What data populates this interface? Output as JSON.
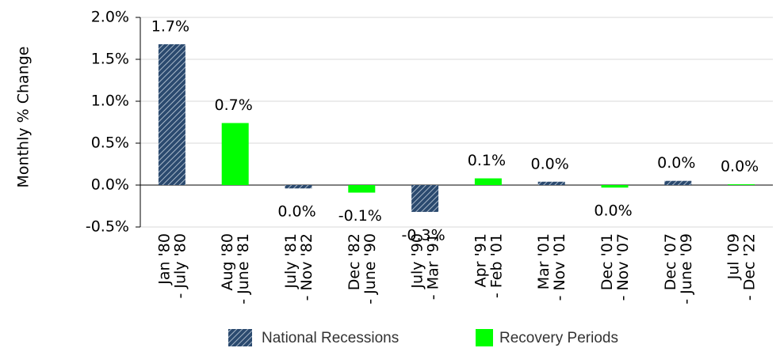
{
  "chart_data": {
    "type": "bar",
    "y_label": "Monthly % Change",
    "categories": [
      [
        "Jan '80",
        "- July '80"
      ],
      [
        "Aug '80",
        "- June '81"
      ],
      [
        "July '81",
        "- Nov '82"
      ],
      [
        "Dec '82",
        "- June '90"
      ],
      [
        "July '90",
        "- Mar '91"
      ],
      [
        "Apr '91",
        "- Feb '01"
      ],
      [
        "Mar '01",
        "- Nov '01"
      ],
      [
        "Dec '01",
        "- Nov '07"
      ],
      [
        "Dec '07",
        "- June '09"
      ],
      [
        "Jul '09",
        "- Dec '22"
      ]
    ],
    "series": [
      {
        "name": "National Recessions",
        "color": "#2b4a6f",
        "pattern": "diagonal-stripes",
        "values": [
          1.68,
          null,
          -0.04,
          null,
          -0.32,
          null,
          0.04,
          null,
          0.05,
          null
        ],
        "value_labels": [
          "1.7%",
          null,
          "0.0%",
          null,
          "-0.3%",
          null,
          "0.0%",
          null,
          "0.0%",
          null
        ]
      },
      {
        "name": "Recovery Periods",
        "color": "#00ff00",
        "values": [
          null,
          0.74,
          null,
          -0.09,
          null,
          0.08,
          null,
          -0.03,
          null,
          0.01
        ],
        "value_labels": [
          null,
          "0.7%",
          null,
          "-0.1%",
          null,
          "0.1%",
          null,
          "0.0%",
          null,
          "0.0%"
        ]
      }
    ],
    "ylim": [
      -0.5,
      2.0
    ],
    "yticks": [
      {
        "value": -0.5,
        "label": "-0.5%"
      },
      {
        "value": 0,
        "label": "0.0%"
      },
      {
        "value": 0.5,
        "label": "0.5%"
      },
      {
        "value": 1.0,
        "label": "1.0%"
      },
      {
        "value": 1.5,
        "label": "1.5%"
      },
      {
        "value": 2.0,
        "label": "2.0%"
      }
    ],
    "grid": true,
    "legend": "bottom"
  }
}
